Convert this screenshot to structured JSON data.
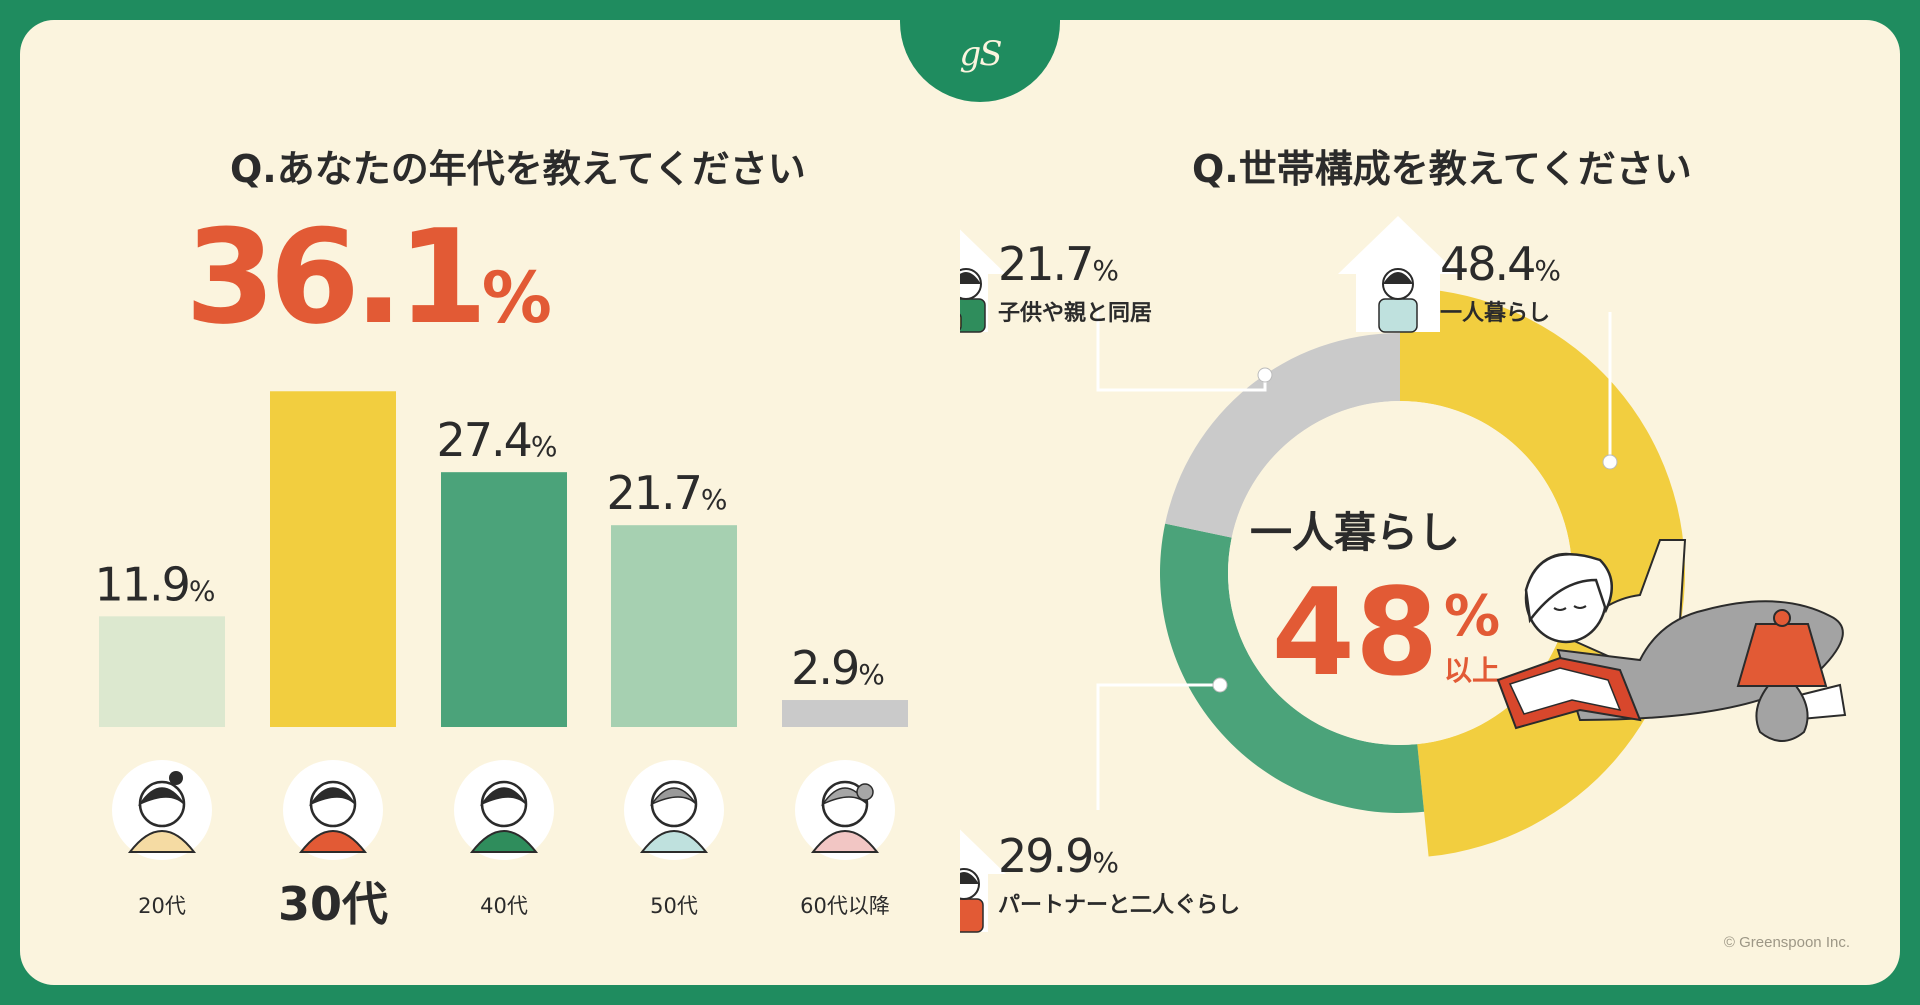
{
  "logo": {
    "text": "gS"
  },
  "q1": {
    "title": "Q.あなたの年代を教えてください"
  },
  "q2": {
    "title": "Q.世帯構成を教えてください"
  },
  "credit": "© Greenspoon Inc.",
  "colors": {
    "bg": "#1f8c5f",
    "card": "#fbf4de",
    "accent_red": "#e25a35",
    "yellow": "#f2ce3f",
    "green": "#4ba37a",
    "light_green": "#a6d0b1",
    "pale_green": "#dce8cf",
    "gray": "#cacaca",
    "text": "#2b2b2b"
  },
  "chart_data": [
    {
      "type": "bar",
      "title": "Q.あなたの年代を教えてください",
      "categories": [
        "20代",
        "30代",
        "40代",
        "50代",
        "60代以降"
      ],
      "values": [
        11.9,
        36.1,
        27.4,
        21.7,
        2.9
      ],
      "value_labels": [
        "11.9",
        "36.1",
        "27.4",
        "21.7",
        "2.9"
      ],
      "unit": "%",
      "colors": [
        "#dce8cf",
        "#f2ce3f",
        "#4ba37a",
        "#a6d0b1",
        "#cacaca"
      ],
      "highlight_index": 1,
      "avatar_icons": [
        "person-20s-icon",
        "person-30s-icon",
        "person-40s-icon",
        "person-50s-icon",
        "person-60s-icon"
      ],
      "ylim": [
        0,
        40
      ],
      "grid": false
    },
    {
      "type": "pie",
      "title": "Q.世帯構成を教えてください",
      "labels": [
        "一人暮らし",
        "パートナーと二人ぐらし",
        "子供や親と同居"
      ],
      "values": [
        48.4,
        29.9,
        21.7
      ],
      "value_labels": [
        "48.4",
        "29.9",
        "21.7"
      ],
      "unit": "%",
      "colors": [
        "#f2ce3f",
        "#4ba37a",
        "#cacaca"
      ],
      "icons": [
        "single-person-house-icon",
        "couple-house-icon",
        "family-house-icon"
      ],
      "center": {
        "label": "一人暮らし",
        "value": "48",
        "unit": "%",
        "suffix": "以上"
      },
      "illustration": "woman-reading-book-icon"
    }
  ]
}
